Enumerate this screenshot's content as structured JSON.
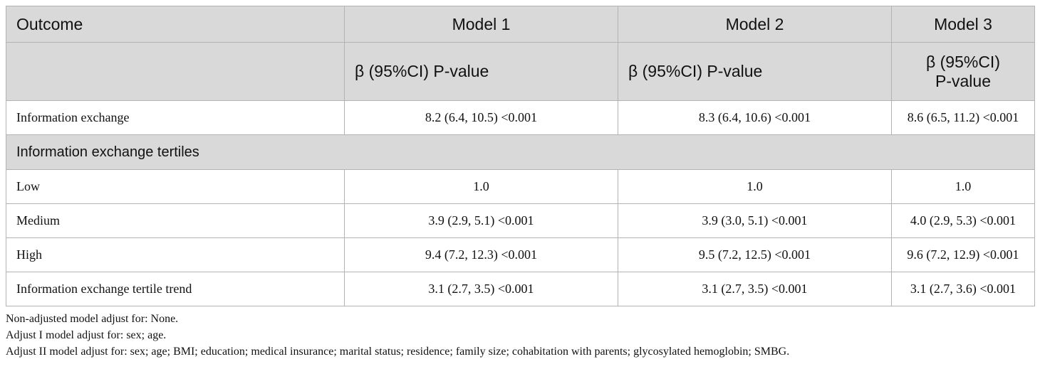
{
  "header": {
    "row1": [
      "Outcome",
      "Model 1",
      "Model 2",
      "Model 3"
    ],
    "row2": [
      "",
      "β (95%CI) P-value",
      "β (95%CI) P-value",
      "β (95%CI)",
      "P-value"
    ]
  },
  "rows": [
    {
      "label": "Information exchange",
      "m1": "8.2 (6.4, 10.5) <0.001",
      "m2": "8.3 (6.4, 10.6) <0.001",
      "m3": "8.6 (6.5, 11.2) <0.001"
    }
  ],
  "section": {
    "label": "Information exchange tertiles"
  },
  "tertile_rows": [
    {
      "label": "Low",
      "m1": "1.0",
      "m2": "1.0",
      "m3": "1.0"
    },
    {
      "label": "Medium",
      "m1": "3.9 (2.9, 5.1) <0.001",
      "m2": "3.9 (3.0, 5.1) <0.001",
      "m3": "4.0 (2.9, 5.3) <0.001"
    },
    {
      "label": "High",
      "m1": "9.4 (7.2, 12.3) <0.001",
      "m2": "9.5 (7.2, 12.5) <0.001",
      "m3": "9.6 (7.2, 12.9) <0.001"
    },
    {
      "label": "Information exchange tertile trend",
      "m1": "3.1 (2.7, 3.5) <0.001",
      "m2": "3.1 (2.7, 3.5) <0.001",
      "m3": "3.1 (2.7, 3.6) <0.001"
    }
  ],
  "notes": [
    "Non-adjusted model adjust for: None.",
    "Adjust I model adjust for: sex; age.",
    "Adjust II model adjust for: sex; age; BMI; education; medical insurance; marital status; residence; family size; cohabitation with parents; glycosylated hemoglobin; SMBG."
  ],
  "colors": {
    "header_bg": "#d9d9d9",
    "border": "#b3b3b3"
  }
}
